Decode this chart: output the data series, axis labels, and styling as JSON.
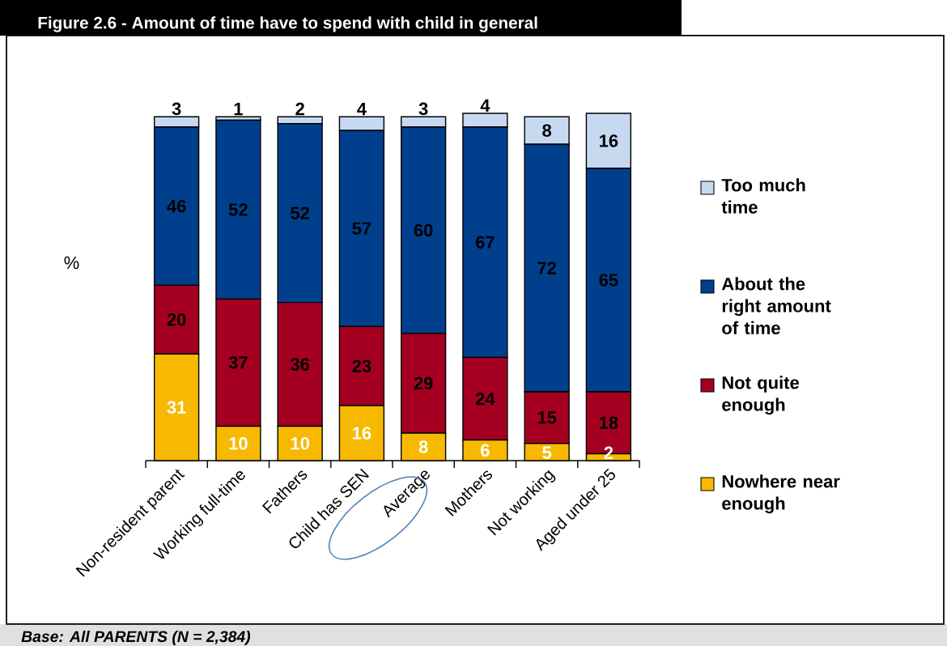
{
  "chart_data": {
    "type": "bar",
    "stacked": true,
    "title": "Figure 2.6 - Amount of time have to spend with child in general",
    "ylabel": "%",
    "categories": [
      "Non-resident parent",
      "Working full-time",
      "Fathers",
      "Child has SEN",
      "Average",
      "Mothers",
      "Not working",
      "Aged under 25"
    ],
    "series": [
      {
        "name": "Nowhere near enough",
        "color": "#f7b900",
        "values": [
          31,
          10,
          10,
          16,
          8,
          6,
          5,
          2
        ]
      },
      {
        "name": "Not quite enough",
        "color": "#a50021",
        "values": [
          20,
          37,
          36,
          23,
          29,
          24,
          15,
          18
        ]
      },
      {
        "name": "About the right amount of time",
        "color": "#003f8c",
        "values": [
          46,
          52,
          52,
          57,
          60,
          67,
          72,
          65
        ]
      },
      {
        "name": "Too much time",
        "color": "#c6d9f1",
        "values": [
          3,
          1,
          2,
          4,
          3,
          4,
          8,
          16
        ]
      }
    ],
    "data_labels": true,
    "legend": "right",
    "annotations": [
      "Base: All PARENTS (N = 2,384)"
    ]
  }
}
